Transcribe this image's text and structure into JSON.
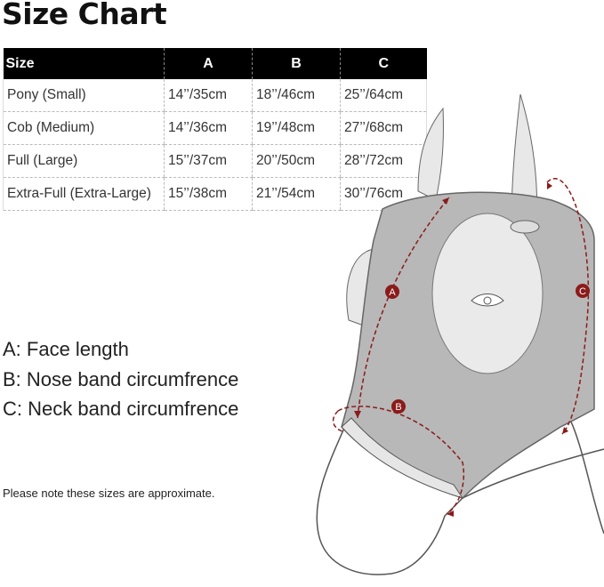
{
  "title": "Size Chart",
  "table": {
    "headers": [
      "Size",
      "A",
      "B",
      "C"
    ],
    "rows": [
      [
        "Pony (Small)",
        "14’’/35cm",
        "18’’/46cm",
        "25’’/64cm"
      ],
      [
        "Cob (Medium)",
        "14’’/36cm",
        "19’’/48cm",
        "27’’/68cm"
      ],
      [
        "Full (Large)",
        "15’’/37cm",
        "20’’/50cm",
        "28’’/72cm"
      ],
      [
        "Extra-Full (Extra-Large)",
        "15’’/38cm",
        "21’’/54cm",
        "30’’/76cm"
      ]
    ]
  },
  "legend": [
    "A: Face length",
    "B: Nose band circumfrence",
    "C: Neck band circumfrence"
  ],
  "note": "Please note these sizes are approximate.",
  "diagram": {
    "markers": [
      "A",
      "B",
      "C"
    ],
    "marker_color": "#8b1a1a",
    "mask_color": "#b8b8b8"
  }
}
